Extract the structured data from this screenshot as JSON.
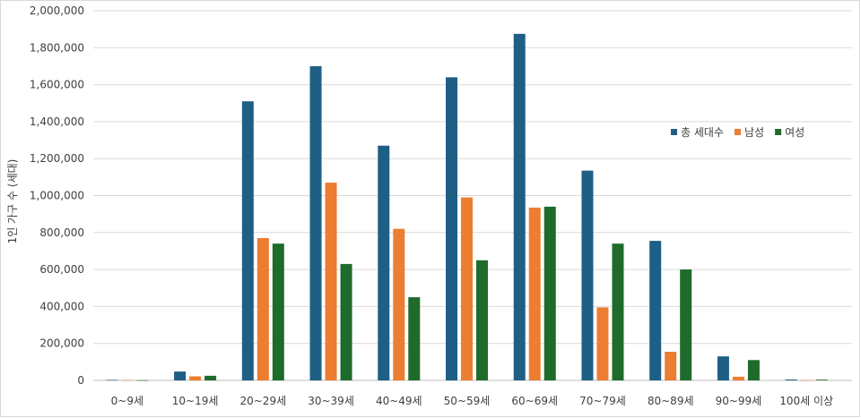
{
  "chart_data": {
    "type": "bar",
    "title": "",
    "xlabel": "",
    "ylabel": "1인 가구 수 (세대)",
    "ylim": [
      0,
      2000000
    ],
    "yticks": [
      "0",
      "200,000",
      "400,000",
      "600,000",
      "800,000",
      "1,000,000",
      "1,200,000",
      "1,400,000",
      "1,600,000",
      "1,800,000",
      "2,000,000"
    ],
    "grid": true,
    "legend_position": "right",
    "categories": [
      "0~9세",
      "10~19세",
      "20~29세",
      "30~39세",
      "40~49세",
      "50~59세",
      "60~69세",
      "70~79세",
      "80~89세",
      "90~99세",
      "100세 이상"
    ],
    "series": [
      {
        "name": "총 세대수",
        "color": "#1f5f85",
        "values": [
          3000,
          48000,
          1510000,
          1700000,
          1270000,
          1640000,
          1875000,
          1135000,
          755000,
          130000,
          5000
        ]
      },
      {
        "name": "남성",
        "color": "#ed7d31",
        "values": [
          2000,
          22000,
          770000,
          1070000,
          820000,
          990000,
          935000,
          395000,
          155000,
          20000,
          1000
        ]
      },
      {
        "name": "여성",
        "color": "#1e6b2b",
        "values": [
          1000,
          25000,
          740000,
          630000,
          450000,
          650000,
          940000,
          740000,
          600000,
          110000,
          4000
        ]
      }
    ]
  }
}
